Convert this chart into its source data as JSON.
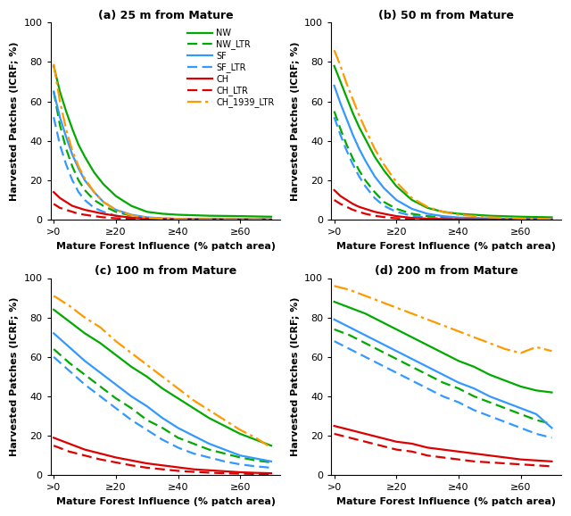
{
  "panels": [
    {
      "title": "(a) 25 m from Mature",
      "show_legend": true
    },
    {
      "title": "(b) 50 m from Mature",
      "show_legend": false
    },
    {
      "title": "(c) 100 m from Mature",
      "show_legend": false
    },
    {
      "title": "(d) 200 m from Mature",
      "show_legend": false
    }
  ],
  "series": [
    {
      "label": "NW",
      "color": "#00AA00",
      "linestyle": "solid"
    },
    {
      "label": "NW_LTR",
      "color": "#00AA00",
      "linestyle": "dashed"
    },
    {
      "label": "SF",
      "color": "#3399FF",
      "linestyle": "solid"
    },
    {
      "label": "SF_LTR",
      "color": "#3399FF",
      "linestyle": "dashed"
    },
    {
      "label": "CH",
      "color": "#DD0000",
      "linestyle": "solid"
    },
    {
      "label": "CH_LTR",
      "color": "#DD0000",
      "linestyle": "dashed"
    },
    {
      "label": "CH_1939_LTR",
      "color": "#FF9900",
      "linestyle": "dashdot"
    }
  ],
  "xtick_positions": [
    0,
    20,
    40,
    60
  ],
  "xtick_labels": [
    ">0",
    "≥20",
    "≥40",
    "≥60"
  ],
  "ylabel": "Harvested Patches (ICRF; %)",
  "xlabel": "Mature Forest Influence (% patch area)",
  "ylim": [
    0,
    100
  ],
  "xlim": [
    -1,
    73
  ],
  "panel_data": {
    "a": {
      "NW": {
        "x": [
          0,
          2,
          4,
          6,
          8,
          10,
          13,
          16,
          20,
          25,
          30,
          35,
          40,
          50,
          60,
          70
        ],
        "y": [
          78,
          65,
          55,
          46,
          38,
          32,
          24,
          18,
          12,
          7,
          4,
          3,
          2.5,
          2,
          1.8,
          1.5
        ]
      },
      "NW_LTR": {
        "x": [
          0,
          2,
          4,
          6,
          8,
          10,
          13,
          16,
          20,
          25,
          30,
          35,
          40,
          50,
          60,
          70
        ],
        "y": [
          65,
          48,
          36,
          27,
          20,
          15,
          10,
          7,
          4,
          2,
          1,
          0.6,
          0.4,
          0.3,
          0.2,
          0.15
        ]
      },
      "SF": {
        "x": [
          0,
          2,
          4,
          6,
          8,
          10,
          13,
          16,
          20,
          25,
          30,
          35,
          40,
          50,
          60,
          70
        ],
        "y": [
          65,
          52,
          42,
          33,
          26,
          20,
          14,
          9,
          5,
          2.5,
          1.2,
          0.7,
          0.4,
          0.2,
          0.15,
          0.1
        ]
      },
      "SF_LTR": {
        "x": [
          0,
          2,
          4,
          6,
          8,
          10,
          13,
          16,
          20,
          25,
          30,
          35,
          40,
          50,
          60,
          70
        ],
        "y": [
          52,
          38,
          28,
          20,
          14,
          10,
          6,
          4,
          2,
          0.9,
          0.4,
          0.2,
          0.15,
          0.1,
          0.08,
          0.05
        ]
      },
      "CH": {
        "x": [
          0,
          2,
          4,
          6,
          8,
          10,
          13,
          16,
          20,
          25,
          30,
          35,
          40,
          50,
          60,
          70
        ],
        "y": [
          14,
          11,
          9,
          7,
          6,
          5,
          4,
          3,
          2,
          1,
          0.5,
          0.3,
          0.2,
          0.15,
          0.1,
          0.08
        ]
      },
      "CH_LTR": {
        "x": [
          0,
          2,
          4,
          6,
          8,
          10,
          13,
          16,
          20,
          25,
          30,
          35,
          40,
          50,
          60,
          70
        ],
        "y": [
          8,
          6,
          5,
          4,
          3,
          2.5,
          1.8,
          1.2,
          0.7,
          0.3,
          0.15,
          0.1,
          0.08,
          0.05,
          0.04,
          0.03
        ]
      },
      "CH_1939_LTR": {
        "x": [
          0,
          2,
          4,
          6,
          8,
          10,
          13,
          16,
          20,
          25,
          30,
          35,
          40,
          50,
          60,
          70
        ],
        "y": [
          79,
          60,
          46,
          35,
          27,
          21,
          14,
          9,
          5,
          2.2,
          1,
          0.5,
          0.3,
          0.2,
          0.15,
          0.1
        ]
      }
    },
    "b": {
      "NW": {
        "x": [
          0,
          2,
          4,
          6,
          8,
          10,
          13,
          16,
          20,
          25,
          30,
          35,
          40,
          50,
          60,
          70
        ],
        "y": [
          78,
          70,
          62,
          54,
          47,
          41,
          32,
          25,
          17,
          10,
          6,
          4,
          3,
          2,
          1.5,
          1.2
        ]
      },
      "NW_LTR": {
        "x": [
          0,
          2,
          4,
          6,
          8,
          10,
          13,
          16,
          20,
          25,
          30,
          35,
          40,
          50,
          60,
          70
        ],
        "y": [
          55,
          46,
          38,
          31,
          25,
          20,
          14,
          9,
          5.5,
          3,
          1.8,
          1.2,
          0.8,
          0.5,
          0.3,
          0.2
        ]
      },
      "SF": {
        "x": [
          0,
          2,
          4,
          6,
          8,
          10,
          13,
          16,
          20,
          25,
          30,
          35,
          40,
          50,
          60,
          70
        ],
        "y": [
          68,
          59,
          51,
          43,
          36,
          30,
          22,
          16,
          10,
          5.5,
          3,
          1.8,
          1.1,
          0.6,
          0.4,
          0.3
        ]
      },
      "SF_LTR": {
        "x": [
          0,
          2,
          4,
          6,
          8,
          10,
          13,
          16,
          20,
          25,
          30,
          35,
          40,
          50,
          60,
          70
        ],
        "y": [
          52,
          43,
          35,
          28,
          22,
          17,
          11,
          7,
          4,
          2,
          1,
          0.6,
          0.4,
          0.2,
          0.15,
          0.1
        ]
      },
      "CH": {
        "x": [
          0,
          2,
          4,
          6,
          8,
          10,
          13,
          16,
          20,
          25,
          30,
          35,
          40,
          50,
          60,
          70
        ],
        "y": [
          15,
          12,
          10,
          8,
          6.5,
          5.5,
          4,
          3,
          1.8,
          0.9,
          0.5,
          0.3,
          0.2,
          0.1,
          0.08,
          0.06
        ]
      },
      "CH_LTR": {
        "x": [
          0,
          2,
          4,
          6,
          8,
          10,
          13,
          16,
          20,
          25,
          30,
          35,
          40,
          50,
          60,
          70
        ],
        "y": [
          10,
          8,
          6.5,
          5,
          4,
          3,
          2,
          1.3,
          0.7,
          0.3,
          0.15,
          0.1,
          0.07,
          0.04,
          0.03,
          0.02
        ]
      },
      "CH_1939_LTR": {
        "x": [
          0,
          2,
          4,
          6,
          8,
          10,
          13,
          16,
          20,
          25,
          30,
          35,
          40,
          50,
          60,
          70
        ],
        "y": [
          86,
          78,
          69,
          61,
          53,
          46,
          36,
          28,
          19,
          11,
          6.5,
          4,
          2.5,
          1.2,
          0.6,
          0.3
        ]
      }
    },
    "c": {
      "NW": {
        "x": [
          0,
          5,
          10,
          15,
          20,
          25,
          30,
          35,
          40,
          45,
          50,
          55,
          60,
          65,
          70
        ],
        "y": [
          84,
          78,
          72,
          67,
          61,
          55,
          50,
          44,
          39,
          34,
          29,
          25,
          21,
          18,
          15
        ]
      },
      "NW_LTR": {
        "x": [
          0,
          5,
          10,
          15,
          20,
          25,
          30,
          35,
          40,
          45,
          50,
          55,
          60,
          65,
          70
        ],
        "y": [
          64,
          57,
          51,
          45,
          39,
          34,
          28,
          24,
          19,
          16,
          13,
          11,
          9,
          7.5,
          6.5
        ]
      },
      "SF": {
        "x": [
          0,
          5,
          10,
          15,
          20,
          25,
          30,
          35,
          40,
          45,
          50,
          55,
          60,
          65,
          70
        ],
        "y": [
          72,
          65,
          58,
          52,
          46,
          40,
          35,
          29,
          24,
          20,
          16,
          13,
          10,
          8.5,
          7
        ]
      },
      "SF_LTR": {
        "x": [
          0,
          5,
          10,
          15,
          20,
          25,
          30,
          35,
          40,
          45,
          50,
          55,
          60,
          65,
          70
        ],
        "y": [
          60,
          53,
          46,
          40,
          34,
          28,
          23,
          18,
          14,
          11,
          9,
          7,
          5.5,
          4.5,
          3.8
        ]
      },
      "CH": {
        "x": [
          0,
          5,
          10,
          15,
          20,
          25,
          30,
          35,
          40,
          45,
          50,
          55,
          60,
          65,
          70
        ],
        "y": [
          19,
          16,
          13,
          11,
          9,
          7.5,
          6,
          5,
          4,
          3,
          2.5,
          2,
          1.5,
          1.2,
          1
        ]
      },
      "CH_LTR": {
        "x": [
          0,
          5,
          10,
          15,
          20,
          25,
          30,
          35,
          40,
          45,
          50,
          55,
          60,
          65,
          70
        ],
        "y": [
          15,
          12,
          10,
          8,
          6.5,
          5,
          3.8,
          3,
          2.2,
          1.7,
          1.3,
          1,
          0.8,
          0.6,
          0.5
        ]
      },
      "CH_1939_LTR": {
        "x": [
          0,
          5,
          10,
          15,
          20,
          25,
          30,
          35,
          40,
          45,
          50,
          55,
          60,
          65,
          70
        ],
        "y": [
          91,
          86,
          80,
          75,
          68,
          62,
          56,
          50,
          44,
          38,
          33,
          28,
          23,
          19,
          14
        ]
      }
    },
    "d": {
      "NW": {
        "x": [
          0,
          5,
          10,
          15,
          20,
          25,
          30,
          35,
          40,
          45,
          50,
          55,
          60,
          65,
          70
        ],
        "y": [
          88,
          85,
          82,
          78,
          74,
          70,
          66,
          62,
          58,
          55,
          51,
          48,
          45,
          43,
          42
        ]
      },
      "NW_LTR": {
        "x": [
          0,
          5,
          10,
          15,
          20,
          25,
          30,
          35,
          40,
          45,
          50,
          55,
          60,
          65,
          70
        ],
        "y": [
          74,
          71,
          67,
          63,
          59,
          55,
          51,
          47,
          44,
          40,
          37,
          34,
          31,
          28,
          26
        ]
      },
      "SF": {
        "x": [
          0,
          5,
          10,
          15,
          20,
          25,
          30,
          35,
          40,
          45,
          50,
          55,
          60,
          65,
          70
        ],
        "y": [
          79,
          75,
          71,
          67,
          63,
          59,
          55,
          51,
          47,
          44,
          40,
          37,
          34,
          31,
          24
        ]
      },
      "SF_LTR": {
        "x": [
          0,
          5,
          10,
          15,
          20,
          25,
          30,
          35,
          40,
          45,
          50,
          55,
          60,
          65,
          70
        ],
        "y": [
          68,
          64,
          60,
          56,
          52,
          48,
          44,
          40,
          37,
          33,
          30,
          27,
          24,
          21,
          19
        ]
      },
      "CH": {
        "x": [
          0,
          5,
          10,
          15,
          20,
          25,
          30,
          35,
          40,
          45,
          50,
          55,
          60,
          65,
          70
        ],
        "y": [
          25,
          23,
          21,
          19,
          17,
          16,
          14,
          13,
          12,
          11,
          10,
          9,
          8,
          7.5,
          7
        ]
      },
      "CH_LTR": {
        "x": [
          0,
          5,
          10,
          15,
          20,
          25,
          30,
          35,
          40,
          45,
          50,
          55,
          60,
          65,
          70
        ],
        "y": [
          21,
          19,
          17,
          15,
          13,
          12,
          10,
          9,
          8,
          7,
          6.5,
          6,
          5.5,
          5,
          4.5
        ]
      },
      "CH_1939_LTR": {
        "x": [
          0,
          5,
          10,
          15,
          20,
          25,
          30,
          35,
          40,
          45,
          50,
          55,
          60,
          65,
          70
        ],
        "y": [
          96,
          94,
          91,
          88,
          85,
          82,
          79,
          76,
          73,
          70,
          67,
          64,
          62,
          65,
          63
        ]
      }
    }
  }
}
